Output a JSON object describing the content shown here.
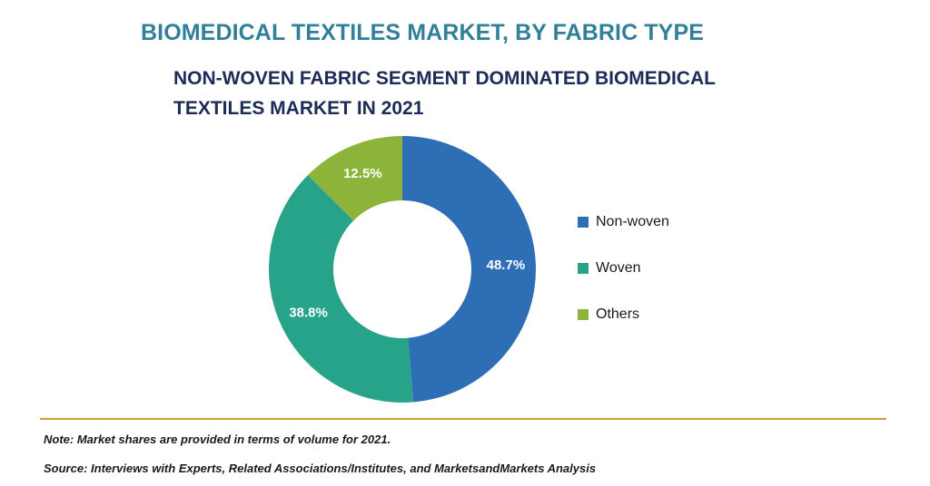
{
  "title": "BIOMEDICAL TEXTILES MARKET, BY FABRIC TYPE",
  "subtitle": "NON-WOVEN FABRIC SEGMENT DOMINATED BIOMEDICAL TEXTILES MARKET IN 2021",
  "note": "Note: Market shares are provided in terms of volume for 2021.",
  "source": "Source: Interviews with Experts, Related Associations/Institutes, and MarketsandMarkets Analysis",
  "colors": {
    "title": "#2f8098",
    "subtitle": "#1d2c56",
    "divider": "#c9a227"
  },
  "chart_data": {
    "type": "pie",
    "variant": "donut",
    "title": "NON-WOVEN FABRIC SEGMENT DOMINATED BIOMEDICAL TEXTILES MARKET IN 2021",
    "legend_position": "right",
    "start": "top, clockwise",
    "slices": [
      {
        "name": "Non-woven",
        "value": 48.7,
        "label": "48.7%",
        "color": "#2e6eb5"
      },
      {
        "name": "Woven",
        "value": 38.8,
        "label": "38.8%",
        "color": "#27a38a"
      },
      {
        "name": "Others",
        "value": 12.5,
        "label": "12.5%",
        "color": "#8cb43a"
      }
    ]
  }
}
